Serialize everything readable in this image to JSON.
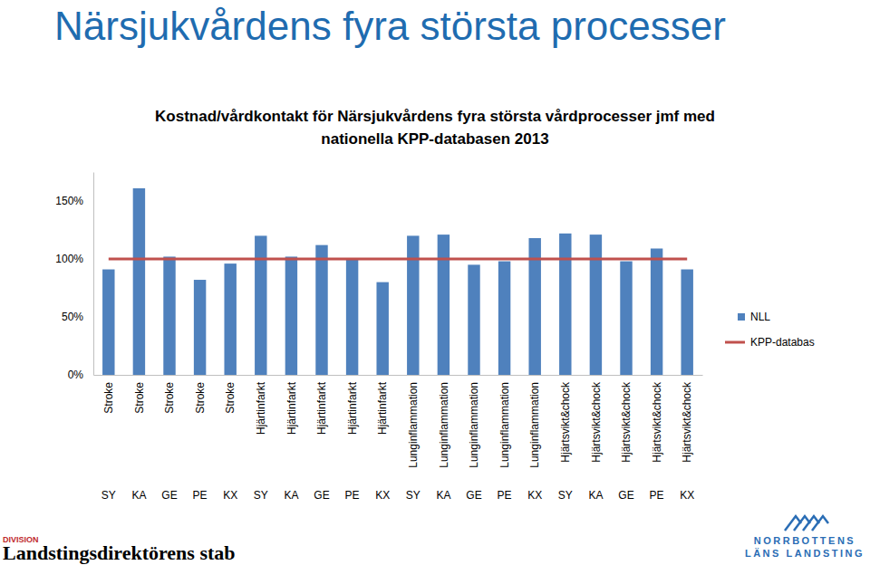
{
  "page": {
    "heading": "Närsjukvårdens fyra största processer",
    "division": "DIVISION",
    "department": "Landstingsdirektörens stab",
    "logo": [
      "NORRBOTTENS",
      "LÄNS LANDSTING"
    ]
  },
  "chart_data": {
    "type": "bar",
    "title": "Kostnad/vårdkontakt för Närsjukvårdens fyra största vårdprocesser jmf med nationella KPP-databasen 2013",
    "categories": [
      "SY",
      "KA",
      "GE",
      "PE",
      "KX",
      "SY",
      "KA",
      "GE",
      "PE",
      "KX",
      "SY",
      "KA",
      "GE",
      "PE",
      "KX",
      "SY",
      "KA",
      "GE",
      "PE",
      "KX"
    ],
    "category_groups": [
      "Stroke",
      "Stroke",
      "Stroke",
      "Stroke",
      "Stroke",
      "Hjärtinfarkt",
      "Hjärtinfarkt",
      "Hjärtinfarkt",
      "Hjärtinfarkt",
      "Hjärtinfarkt",
      "Lunginflammation",
      "Lunginflammation",
      "Lunginflammation",
      "Lunginflammation",
      "Lunginflammation",
      "Hjärtsvikt&chock",
      "Hjärtsvikt&chock",
      "Hjärtsvikt&chock",
      "Hjärtsvikt&chock",
      "Hjärtsvikt&chock"
    ],
    "series": [
      {
        "name": "NLL",
        "type": "bar",
        "color": "#4f81bd",
        "values": [
          91,
          161,
          102,
          82,
          96,
          120,
          102,
          112,
          100,
          80,
          120,
          121,
          95,
          98,
          118,
          122,
          121,
          98,
          109,
          91
        ]
      },
      {
        "name": "KPP-databas",
        "type": "line",
        "color": "#c0504d",
        "values": [
          100,
          100,
          100,
          100,
          100,
          100,
          100,
          100,
          100,
          100,
          100,
          100,
          100,
          100,
          100,
          100,
          100,
          100,
          100,
          100
        ]
      }
    ],
    "ylim": [
      0,
      175
    ],
    "yticks": [
      {
        "value": 0,
        "label": "0%"
      },
      {
        "value": 50,
        "label": "50%"
      },
      {
        "value": 100,
        "label": "100%"
      },
      {
        "value": 150,
        "label": "150%"
      }
    ],
    "grid": false,
    "legend": "right"
  }
}
